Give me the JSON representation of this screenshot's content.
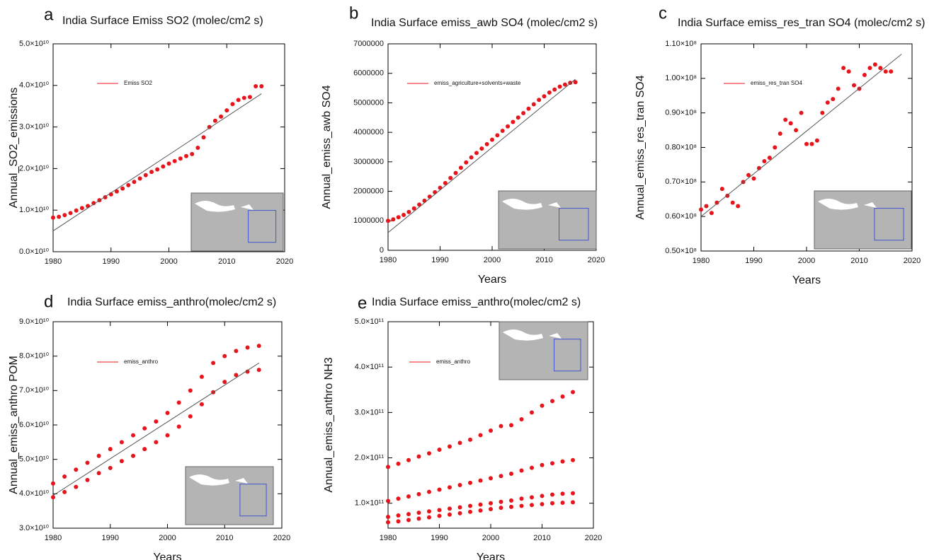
{
  "chart_data": [
    {
      "type": "scatter",
      "panel": "a",
      "title": "India Surface Emiss SO2 (molec/cm2 s)",
      "ylabel": "Annual_SO2_emissions",
      "x": [
        1980,
        1981,
        1982,
        1983,
        1984,
        1985,
        1986,
        1987,
        1988,
        1989,
        1990,
        1991,
        1992,
        1993,
        1994,
        1995,
        1996,
        1997,
        1998,
        1999,
        2000,
        2001,
        2002,
        2003,
        2004,
        2005,
        2006,
        2007,
        2008,
        2009,
        2010,
        2011,
        2012,
        2013,
        2014,
        2015,
        2016
      ],
      "series": [
        {
          "name": "Emiss SO2",
          "color": "#e8141b",
          "style": "markers",
          "values": [
            8200000000.0,
            8400000000.0,
            8800000000.0,
            9300000000.0,
            9900000000.0,
            10500000000.0,
            11000000000.0,
            11700000000.0,
            12400000000.0,
            13100000000.0,
            13800000000.0,
            14500000000.0,
            15200000000.0,
            16000000000.0,
            16800000000.0,
            17600000000.0,
            18400000000.0,
            19200000000.0,
            19800000000.0,
            20500000000.0,
            21200000000.0,
            21800000000.0,
            22400000000.0,
            23000000000.0,
            23500000000.0,
            25000000000.0,
            27500000000.0,
            30000000000.0,
            31500000000.0,
            32500000000.0,
            34000000000.0,
            35500000000.0,
            36500000000.0,
            37000000000.0,
            37200000000.0,
            39800000000.0,
            39800000000.0
          ]
        },
        {
          "color": "#555555",
          "style": "line",
          "x": [
            1980,
            2016
          ],
          "values": [
            5000000000.0,
            38000000000.0
          ]
        }
      ],
      "xlim": [
        1980,
        2020
      ],
      "xticks": [
        1980,
        1990,
        2000,
        2010,
        2020
      ],
      "ylim": [
        0,
        50000000000.0
      ],
      "yticks": [
        {
          "value": 0,
          "label": "0.0×10¹⁰"
        },
        {
          "value": 10000000000.0,
          "label": "1.0×10¹⁰"
        },
        {
          "value": 20000000000.0,
          "label": "2.0×10¹⁰"
        },
        {
          "value": 30000000000.0,
          "label": "3.0×10¹⁰"
        },
        {
          "value": 40000000000.0,
          "label": "4.0×10¹⁰"
        },
        {
          "value": 50000000000.0,
          "label": "5.0×10¹⁰"
        }
      ]
    },
    {
      "type": "scatter",
      "panel": "b",
      "title": "India Surface emiss_awb SO4 (molec/cm2 s)",
      "ylabel": "Annual_emiss_awb SO4",
      "xlabel": "Years",
      "x": [
        1980,
        1981,
        1982,
        1983,
        1984,
        1985,
        1986,
        1987,
        1988,
        1989,
        1990,
        1991,
        1992,
        1993,
        1994,
        1995,
        1996,
        1997,
        1998,
        1999,
        2000,
        2001,
        2002,
        2003,
        2004,
        2005,
        2006,
        2007,
        2008,
        2009,
        2010,
        2011,
        2012,
        2013,
        2014,
        2015,
        2016
      ],
      "series": [
        {
          "name": "emiss_agriculture+solvents+waste",
          "color": "#e8141b",
          "style": "markers",
          "values": [
            1000000,
            1050000,
            1120000,
            1200000,
            1300000,
            1420000,
            1550000,
            1680000,
            1820000,
            1970000,
            2120000,
            2280000,
            2450000,
            2620000,
            2800000,
            2980000,
            3150000,
            3300000,
            3450000,
            3600000,
            3750000,
            3900000,
            4050000,
            4200000,
            4350000,
            4500000,
            4650000,
            4800000,
            4950000,
            5100000,
            5220000,
            5350000,
            5450000,
            5550000,
            5620000,
            5680000,
            5700000
          ]
        },
        {
          "color": "#555555",
          "style": "line",
          "x": [
            1980,
            2016
          ],
          "values": [
            600000,
            5800000
          ]
        }
      ],
      "xlim": [
        1980,
        2020
      ],
      "xticks": [
        1980,
        1990,
        2000,
        2010,
        2020
      ],
      "ylim": [
        0,
        7000000
      ],
      "yticks": [
        0,
        1000000,
        2000000,
        3000000,
        4000000,
        5000000,
        6000000,
        7000000
      ]
    },
    {
      "type": "scatter",
      "panel": "c",
      "title": "India Surface emiss_res_tran SO4 (molec/cm2 s)",
      "ylabel": "Annual_emiss_res_tran SO4",
      "xlabel": "Years",
      "x": [
        1980,
        1981,
        1982,
        1983,
        1984,
        1985,
        1986,
        1987,
        1988,
        1989,
        1990,
        1991,
        1992,
        1993,
        1994,
        1995,
        1996,
        1997,
        1998,
        1999,
        2000,
        2001,
        2002,
        2003,
        2004,
        2005,
        2006,
        2007,
        2008,
        2009,
        2010,
        2011,
        2012,
        2013,
        2014,
        2015,
        2016
      ],
      "series": [
        {
          "name": "emiss_res_tran SO4",
          "color": "#e8141b",
          "style": "markers",
          "values": [
            62000000.0,
            63000000.0,
            61000000.0,
            64000000.0,
            68000000.0,
            66000000.0,
            64000000.0,
            63000000.0,
            70000000.0,
            72000000.0,
            71000000.0,
            74000000.0,
            76000000.0,
            77000000.0,
            80000000.0,
            84000000.0,
            88000000.0,
            87000000.0,
            85000000.0,
            90000000.0,
            81000000.0,
            81000000.0,
            82000000.0,
            90000000.0,
            93000000.0,
            94000000.0,
            97000000.0,
            103000000.0,
            102000000.0,
            98000000.0,
            97000000.0,
            101000000.0,
            103000000.0,
            104000000.0,
            103000000.0,
            102000000.0,
            102000000.0
          ]
        },
        {
          "color": "#555555",
          "style": "line",
          "x": [
            1980,
            2018
          ],
          "values": [
            60000000.0,
            107000000.0
          ]
        }
      ],
      "xlim": [
        1980,
        2020
      ],
      "xticks": [
        1980,
        1990,
        2000,
        2010,
        2020
      ],
      "ylim": [
        50000000.0,
        110000000.0
      ],
      "yticks": [
        {
          "value": 50000000.0,
          "label": "0.50×10⁸"
        },
        {
          "value": 60000000.0,
          "label": "0.60×10⁸"
        },
        {
          "value": 70000000.0,
          "label": "0.70×10⁸"
        },
        {
          "value": 80000000.0,
          "label": "0.80×10⁸"
        },
        {
          "value": 90000000.0,
          "label": "0.90×10⁸"
        },
        {
          "value": 100000000.0,
          "label": "1.00×10⁸"
        },
        {
          "value": 110000000.0,
          "label": "1.10×10⁸"
        }
      ]
    },
    {
      "type": "scatter",
      "panel": "d",
      "title": "India Surface emiss_anthro(molec/cm2 s)",
      "ylabel": "Annual_emiss_anthro POM",
      "xlabel": "Years",
      "x": [
        1980,
        1982,
        1984,
        1986,
        1988,
        1990,
        1992,
        1994,
        1996,
        1998,
        2000,
        2002,
        2004,
        2006,
        2008,
        2010,
        2012,
        2014,
        2016
      ],
      "series": [
        {
          "name": "emiss_anthro",
          "color": "#e8141b",
          "style": "markers",
          "values": [
            43000000000.0,
            45000000000.0,
            47000000000.0,
            49000000000.0,
            51000000000.0,
            53000000000.0,
            55000000000.0,
            57000000000.0,
            59000000000.0,
            61000000000.0,
            63500000000.0,
            66500000000.0,
            70000000000.0,
            74000000000.0,
            78000000000.0,
            80000000000.0,
            81500000000.0,
            82500000000.0,
            83000000000.0
          ]
        },
        {
          "color": "#e8141b",
          "style": "markers",
          "values": [
            39000000000.0,
            40500000000.0,
            42000000000.0,
            44000000000.0,
            46000000000.0,
            47500000000.0,
            49500000000.0,
            51000000000.0,
            53000000000.0,
            55000000000.0,
            57000000000.0,
            59500000000.0,
            62500000000.0,
            66000000000.0,
            69500000000.0,
            72500000000.0,
            74500000000.0,
            75500000000.0,
            76000000000.0
          ]
        },
        {
          "color": "#555555",
          "style": "line",
          "x": [
            1980,
            2016
          ],
          "values": [
            39500000000.0,
            78000000000.0
          ]
        }
      ],
      "xlim": [
        1980,
        2020
      ],
      "xticks": [
        1980,
        1990,
        2000,
        2010,
        2020
      ],
      "ylim": [
        30000000000.0,
        90000000000.0
      ],
      "yticks": [
        {
          "value": 30000000000.0,
          "label": "3.0×10¹⁰"
        },
        {
          "value": 40000000000.0,
          "label": "4.0×10¹⁰"
        },
        {
          "value": 50000000000.0,
          "label": "5.0×10¹⁰"
        },
        {
          "value": 60000000000.0,
          "label": "6.0×10¹⁰"
        },
        {
          "value": 70000000000.0,
          "label": "7.0×10¹⁰"
        },
        {
          "value": 80000000000.0,
          "label": "8.0×10¹⁰"
        },
        {
          "value": 90000000000.0,
          "label": "9.0×10¹⁰"
        }
      ]
    },
    {
      "type": "scatter",
      "panel": "e",
      "title": "India Surface emiss_anthro(molec/cm2 s)",
      "ylabel": "Annual_emiss_anthro NH3",
      "xlabel": "Years",
      "x": [
        1980,
        1982,
        1984,
        1986,
        1988,
        1990,
        1992,
        1994,
        1996,
        1998,
        2000,
        2002,
        2004,
        2006,
        2008,
        2010,
        2012,
        2014,
        2016
      ],
      "series": [
        {
          "name": "emiss_anthro",
          "color": "#e8141b",
          "style": "markers",
          "values": [
            180000000000.0,
            187000000000.0,
            195000000000.0,
            203000000000.0,
            210000000000.0,
            218000000000.0,
            225000000000.0,
            233000000000.0,
            240000000000.0,
            250000000000.0,
            260000000000.0,
            270000000000.0,
            272000000000.0,
            285000000000.0,
            300000000000.0,
            315000000000.0,
            325000000000.0,
            335000000000.0,
            345000000000.0
          ]
        },
        {
          "color": "#e8141b",
          "style": "markers",
          "values": [
            105000000000.0,
            110000000000.0,
            115000000000.0,
            120000000000.0,
            125000000000.0,
            130000000000.0,
            135000000000.0,
            140000000000.0,
            145000000000.0,
            150000000000.0,
            155000000000.0,
            160000000000.0,
            165000000000.0,
            172000000000.0,
            178000000000.0,
            184000000000.0,
            188000000000.0,
            192000000000.0,
            195000000000.0
          ]
        },
        {
          "color": "#e8141b",
          "style": "markers",
          "values": [
            70000000000.0,
            73000000000.0,
            76000000000.0,
            79000000000.0,
            82000000000.0,
            85000000000.0,
            88000000000.0,
            91000000000.0,
            94000000000.0,
            97000000000.0,
            100000000000.0,
            103000000000.0,
            106000000000.0,
            110000000000.0,
            113000000000.0,
            116000000000.0,
            119000000000.0,
            121000000000.0,
            122000000000.0
          ]
        },
        {
          "color": "#e8141b",
          "style": "markers",
          "values": [
            58000000000.0,
            60000000000.0,
            63000000000.0,
            66000000000.0,
            69000000000.0,
            72000000000.0,
            75000000000.0,
            78000000000.0,
            81000000000.0,
            84000000000.0,
            87000000000.0,
            90000000000.0,
            92000000000.0,
            94000000000.0,
            96000000000.0,
            98000000000.0,
            100000000000.0,
            101000000000.0,
            102000000000.0
          ]
        }
      ],
      "xlim": [
        1980,
        2020
      ],
      "xticks": [
        1980,
        1990,
        2000,
        2010,
        2020
      ],
      "ylim": [
        45000000000.0,
        500000000000.0
      ],
      "yticks": [
        {
          "value": 100000000000.0,
          "label": "1.0×10¹¹"
        },
        {
          "value": 200000000000.0,
          "label": "2.0×10¹¹"
        },
        {
          "value": 300000000000.0,
          "label": "3.0×10¹¹"
        },
        {
          "value": 400000000000.0,
          "label": "4.0×10¹¹"
        },
        {
          "value": 500000000000.0,
          "label": "5.0×10¹¹"
        }
      ]
    }
  ]
}
